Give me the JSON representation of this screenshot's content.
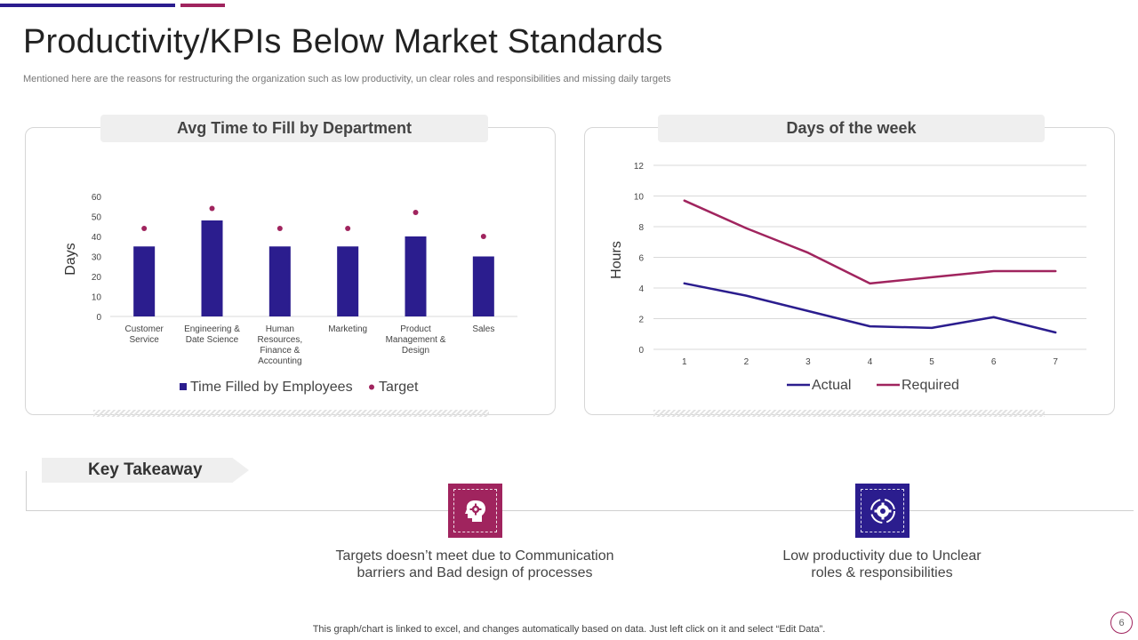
{
  "page": {
    "title": "Productivity/KPIs Below Market Standards",
    "subtitle": "Mentioned here are the reasons for restructuring the organization such as low productivity, un clear roles and responsibilities and missing daily targets",
    "footnote": "This graph/chart is linked to excel, and changes automatically based on data. Just left click on it and select “Edit Data”.",
    "page_number": "6"
  },
  "colors": {
    "navy": "#2b1d8e",
    "plum": "#a0245e",
    "grid": "#d9d9d9"
  },
  "key_takeaway": {
    "label": "Key Takeaway",
    "items": [
      {
        "icon": "head-gear-icon",
        "text_line1": "Targets doesn’t meet due to Communication",
        "text_line2": "barriers and Bad design of processes"
      },
      {
        "icon": "cycle-gear-icon",
        "text_line1": "Low productivity due to Unclear",
        "text_line2": "roles & responsibilities"
      }
    ]
  },
  "chart_data": [
    {
      "type": "bar",
      "title": "Avg Time to Fill by Department",
      "ylabel": "Days",
      "xlabel": "",
      "ylim": [
        0,
        60
      ],
      "yticks": [
        0,
        10,
        20,
        30,
        40,
        50,
        60
      ],
      "categories": [
        [
          "Customer",
          "Service"
        ],
        [
          "Engineering &",
          "Date Science"
        ],
        [
          "Human",
          "Resources,",
          "Finance &",
          "Accounting"
        ],
        [
          "Marketing"
        ],
        [
          "Product",
          "Management &",
          "Design"
        ],
        [
          "Sales"
        ]
      ],
      "series": [
        {
          "name": "Time Filled by Employees",
          "kind": "bar",
          "values": [
            35,
            48,
            35,
            35,
            40,
            30
          ]
        },
        {
          "name": "Target",
          "kind": "marker",
          "values": [
            44,
            54,
            44,
            44,
            52,
            40
          ]
        }
      ],
      "legend": "bottom",
      "grid": false
    },
    {
      "type": "line",
      "title": "Days of the week",
      "ylabel": "Hours",
      "xlabel": "",
      "x": [
        1,
        2,
        3,
        4,
        5,
        6,
        7
      ],
      "ylim": [
        0,
        12
      ],
      "yticks": [
        0,
        2,
        4,
        6,
        8,
        10,
        12
      ],
      "series": [
        {
          "name": "Actual",
          "values": [
            4.3,
            3.5,
            2.5,
            1.5,
            1.4,
            2.1,
            1.1
          ]
        },
        {
          "name": "Required",
          "values": [
            9.7,
            7.9,
            6.3,
            4.3,
            4.7,
            5.1,
            5.1
          ]
        }
      ],
      "legend": "bottom",
      "grid": true
    }
  ]
}
